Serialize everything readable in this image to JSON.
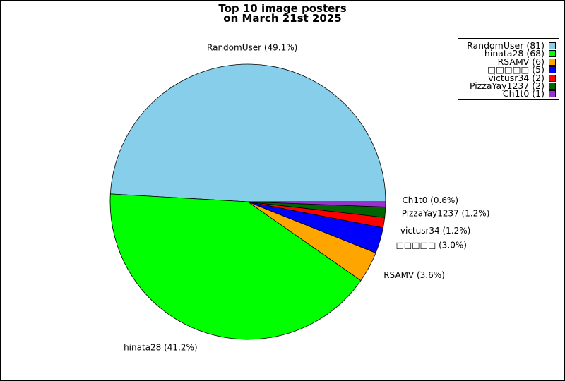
{
  "chart_data": {
    "type": "pie",
    "title_line1": "Top 10 image posters",
    "title_line2": "on March 21st 2025",
    "slices": [
      {
        "name": "RandomUser",
        "value": 81,
        "percent_label": "RandomUser (49.1%)",
        "legend_label": "RandomUser (81)",
        "color": "#87ceeb"
      },
      {
        "name": "hinata28",
        "value": 68,
        "percent_label": "hinata28 (41.2%)",
        "legend_label": "hinata28 (68)",
        "color": "#00ff00"
      },
      {
        "name": "RSAMV",
        "value": 6,
        "percent_label": "RSAMV (3.6%)",
        "legend_label": "RSAMV (6)",
        "color": "#ffa500"
      },
      {
        "name": "□□□□□",
        "value": 5,
        "percent_label": "□□□□□ (3.0%)",
        "legend_label": "□□□□□ (5)",
        "color": "#0000ff"
      },
      {
        "name": "victusr34",
        "value": 2,
        "percent_label": "victusr34 (1.2%)",
        "legend_label": "victusr34 (2)",
        "color": "#ff0000"
      },
      {
        "name": "PizzaYay1237",
        "value": 2,
        "percent_label": "PizzaYay1237 (1.2%)",
        "legend_label": "PizzaYay1237 (2)",
        "color": "#006400"
      },
      {
        "name": "Ch1t0",
        "value": 1,
        "percent_label": "Ch1t0 (0.6%)",
        "legend_label": "Ch1t0 (1)",
        "color": "#9932cc"
      }
    ],
    "legend_position": "top-right"
  }
}
